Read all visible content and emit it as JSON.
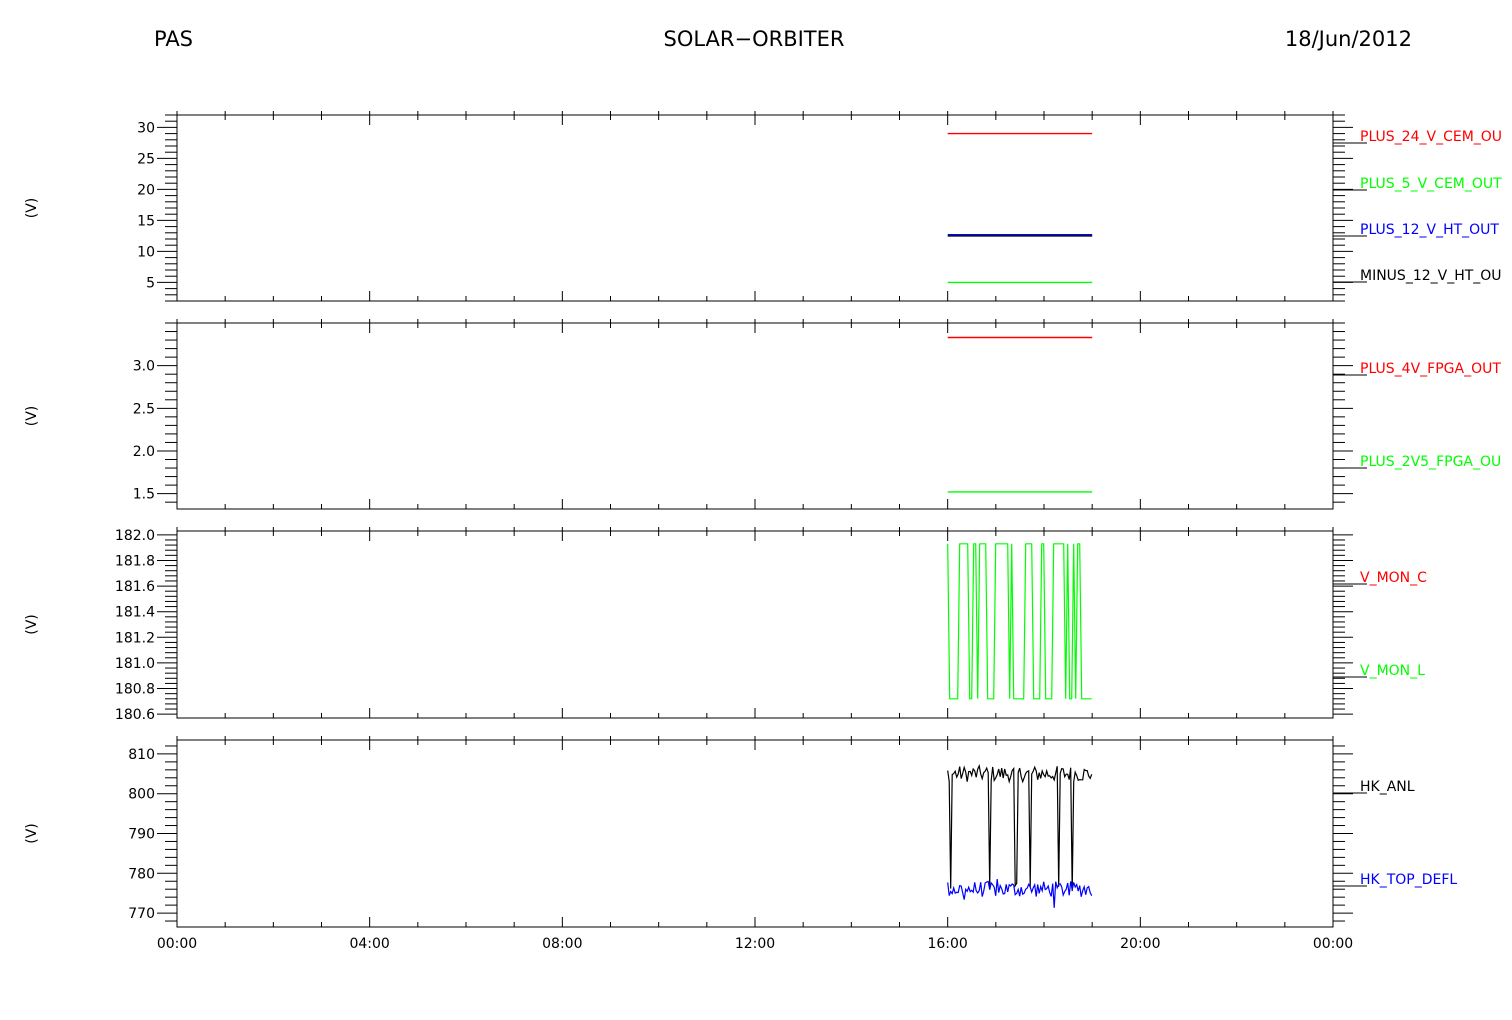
{
  "header": {
    "left": "PAS",
    "center": "SOLAR−ORBITER",
    "right": "18/Jun/2012"
  },
  "chart_data": {
    "type": "line",
    "x_unit": "time of day",
    "x_range": [
      "00:00",
      "24:00"
    ],
    "x_tick_labels": [
      "00:00",
      "04:00",
      "08:00",
      "12:00",
      "16:00",
      "20:00",
      "00:00"
    ],
    "data_span": [
      "16:00",
      "19:00"
    ],
    "panels": [
      {
        "ylabel": "(V)",
        "ylim": [
          2,
          32
        ],
        "yticks": [
          5,
          10,
          15,
          20,
          25,
          30
        ],
        "ytick_labels": [
          "5",
          "10",
          "15",
          "20",
          "25",
          "30"
        ],
        "series": [
          {
            "name": "PLUS_24_V_CEM_OU",
            "color": "#ff0000",
            "style": "flat",
            "value": 29.0
          },
          {
            "name": "PLUS_5_V_CEM_OUT",
            "color": "#00ff00",
            "style": "flat",
            "value": 5.0
          },
          {
            "name": "PLUS_12_V_HT_OUT",
            "color": "#0000ff",
            "style": "flat",
            "value": 12.7
          },
          {
            "name": "MINUS_12_V_HT_OU",
            "color": "#000000",
            "style": "flat",
            "value": 12.5
          }
        ]
      },
      {
        "ylabel": "(V)",
        "ylim": [
          1.32,
          3.5
        ],
        "yticks": [
          1.5,
          2.0,
          2.5,
          3.0
        ],
        "ytick_labels": [
          "1.5",
          "2.0",
          "2.5",
          "3.0"
        ],
        "series": [
          {
            "name": "PLUS_4V_FPGA_OUT",
            "color": "#ff0000",
            "style": "flat",
            "value": 3.33
          },
          {
            "name": "PLUS_2V5_FPGA_OU",
            "color": "#00ff00",
            "style": "flat",
            "value": 1.52
          }
        ]
      },
      {
        "ylabel": "(V)",
        "ylim": [
          180.57,
          182.03
        ],
        "yticks": [
          180.6,
          180.8,
          181.0,
          181.2,
          181.4,
          181.6,
          181.8,
          182.0
        ],
        "ytick_labels": [
          "180.6",
          "180.8",
          "181.0",
          "181.2",
          "181.4",
          "181.6",
          "181.8",
          "182.0"
        ],
        "series": [
          {
            "name": "V_MON_C",
            "color": "#ff0000",
            "style": "none",
            "value": null
          },
          {
            "name": "V_MON_L",
            "color": "#00ff00",
            "style": "toggle",
            "low": 180.72,
            "high": 181.93
          }
        ]
      },
      {
        "ylabel": "(V)",
        "ylim": [
          766.5,
          813.5
        ],
        "yticks": [
          770,
          780,
          790,
          800,
          810
        ],
        "ytick_labels": [
          "770",
          "780",
          "790",
          "800",
          "810"
        ],
        "series": [
          {
            "name": "HK_ANL",
            "color": "#000000",
            "style": "noisy-switch",
            "value": 805,
            "alt": 776
          },
          {
            "name": "HK_TOP_DEFL",
            "color": "#0000ff",
            "style": "noisy",
            "value": 776
          }
        ]
      }
    ]
  }
}
